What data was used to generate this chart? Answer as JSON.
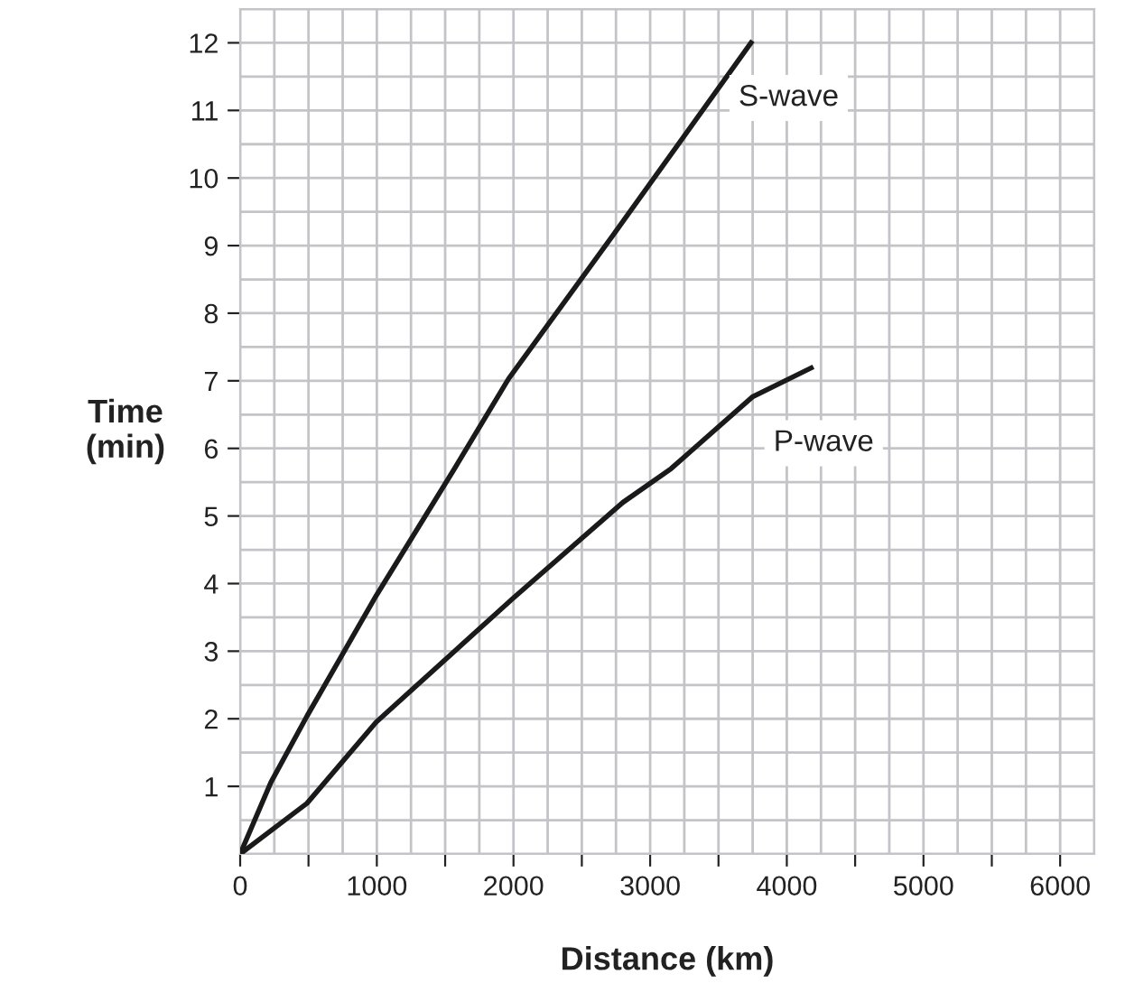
{
  "chart_data": {
    "type": "line",
    "xlabel": "Distance (km)",
    "ylabel": "Time\n(min)",
    "series": [
      {
        "name": "S-wave",
        "color": "#1a1a1a",
        "x": [
          0,
          225,
          489,
          995,
          1568,
          1964,
          2734,
          3738
        ],
        "values": [
          0,
          1.06,
          2.04,
          3.82,
          5.7,
          7.03,
          9.17,
          12.0
        ]
      },
      {
        "name": "P-wave",
        "color": "#1a1a1a",
        "x": [
          0,
          489,
          995,
          1995,
          2800,
          3153,
          3747,
          4178
        ],
        "values": [
          0,
          0.75,
          1.95,
          3.78,
          5.2,
          5.7,
          6.76,
          7.19
        ]
      }
    ],
    "xlim": [
      0,
      6250
    ],
    "ylim": [
      0,
      12.5
    ],
    "xticks": [
      0,
      {
        "value": 500,
        "label": null
      },
      1000,
      {
        "value": 1500,
        "label": null
      },
      2000,
      {
        "value": 2500,
        "label": null
      },
      3000,
      {
        "value": 3500,
        "label": null
      },
      4000,
      {
        "value": 4500,
        "label": null
      },
      5000,
      {
        "value": 5500,
        "label": null
      },
      6000
    ],
    "yticks": [
      1,
      2,
      3,
      4,
      5,
      6,
      7,
      8,
      9,
      10,
      11,
      12
    ],
    "grid": true,
    "legend": false,
    "marker": "none",
    "line_style": "solid"
  }
}
